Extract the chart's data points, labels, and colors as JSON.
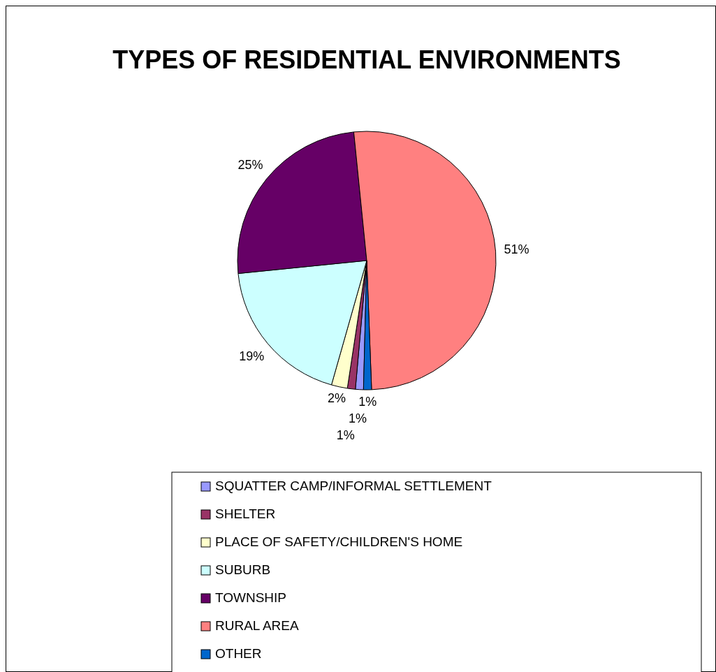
{
  "chart_data": {
    "type": "pie",
    "title": "TYPES OF RESIDENTIAL ENVIRONMENTS",
    "categories": [
      "SQUATTER CAMP/INFORMAL SETTLEMENT",
      "SHELTER",
      "PLACE OF SAFETY/CHILDREN'S HOME",
      "SUBURB",
      "TOWNSHIP",
      "RURAL AREA",
      "OTHER"
    ],
    "values": [
      1,
      1,
      2,
      19,
      25,
      51,
      1
    ],
    "colors": [
      "#9999ff",
      "#993366",
      "#ffffcc",
      "#ccffff",
      "#660066",
      "#ff8080",
      "#0066cc"
    ],
    "value_labels": [
      "1%",
      "1%",
      "2%",
      "19%",
      "25%",
      "51%",
      "1%"
    ],
    "legend": "bottom"
  }
}
